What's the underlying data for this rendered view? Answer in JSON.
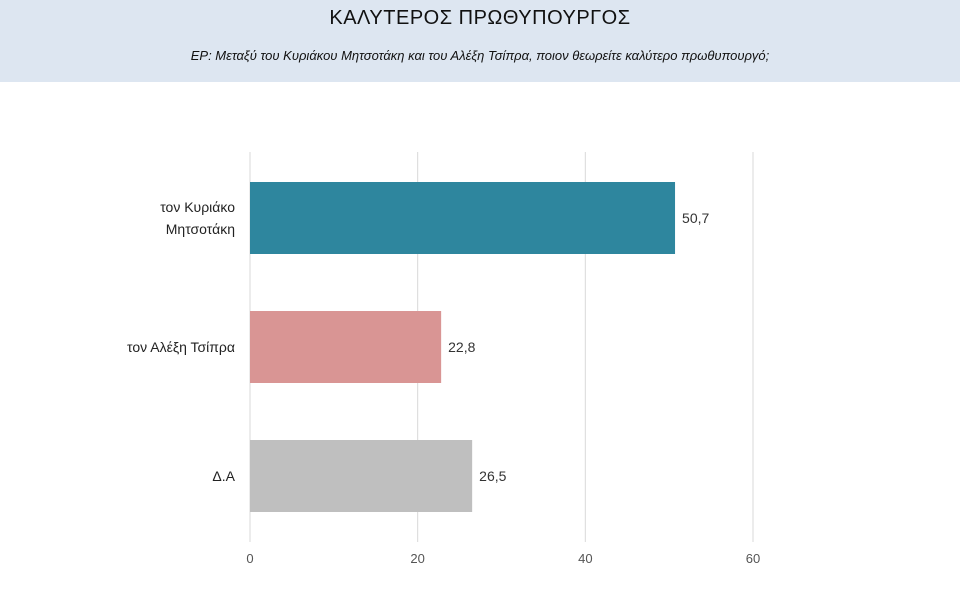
{
  "header": {
    "title": "ΚΑΛΥΤΕΡΟΣ ΠΡΩΘΥΠΟΥΡΓΟΣ",
    "subtitle": "ΕΡ:  Μεταξύ του Κυριάκου Μητσοτάκη και του Αλέξη Τσίπρα, ποιον θεωρείτε καλύτερο πρωθυπουργό;"
  },
  "chart_data": {
    "type": "bar",
    "orientation": "horizontal",
    "categories": [
      [
        "τον Κυριάκο",
        "Μητσοτάκη"
      ],
      [
        "τον Αλέξη Τσίπρα"
      ],
      [
        "Δ.Α"
      ]
    ],
    "values": [
      50.7,
      22.8,
      26.5
    ],
    "value_labels": [
      "50,7",
      "22,8",
      "26,5"
    ],
    "colors": [
      "#2e869e",
      "#d99594",
      "#bfbfbf"
    ],
    "xlim": [
      0,
      60
    ],
    "xticks": [
      0,
      20,
      40,
      60
    ],
    "grid": true,
    "legend": "none"
  }
}
